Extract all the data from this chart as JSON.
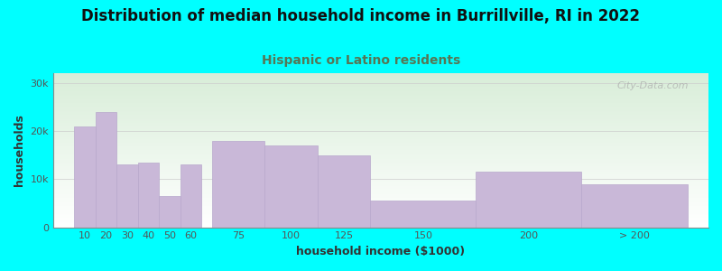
{
  "title": "Distribution of median household income in Burrillville, RI in 2022",
  "subtitle": "Hispanic or Latino residents",
  "xlabel": "household income ($1000)",
  "ylabel": "households",
  "background_color": "#00FFFF",
  "plot_bg_top": "#d8edd8",
  "plot_bg_bottom": "#ffffff",
  "bar_color": "#c9b8d8",
  "bar_edge_color": "#b8a8cc",
  "ylim": [
    0,
    32000
  ],
  "yticks": [
    0,
    10000,
    20000,
    30000
  ],
  "ytick_labels": [
    "0",
    "10k",
    "20k",
    "30k"
  ],
  "xtick_labels": [
    "10",
    "20",
    "30",
    "40",
    "50",
    "60",
    "75",
    "100",
    "125",
    "150",
    "200",
    "> 200"
  ],
  "bar_vals": [
    21000,
    24000,
    13000,
    13500,
    6500,
    13000,
    18000,
    17000,
    15000,
    5500,
    11500,
    9000
  ],
  "bar_pos": [
    10,
    20,
    30,
    40,
    50,
    60,
    75,
    100,
    125,
    150,
    200,
    250
  ],
  "bar_wid": [
    10,
    10,
    10,
    10,
    10,
    10,
    25,
    25,
    25,
    50,
    50,
    50
  ],
  "title_fontsize": 12,
  "subtitle_fontsize": 10,
  "subtitle_color": "#557755",
  "axis_label_fontsize": 9,
  "tick_fontsize": 8,
  "watermark": "City-Data.com",
  "xlim_left": 0,
  "xlim_right": 310
}
